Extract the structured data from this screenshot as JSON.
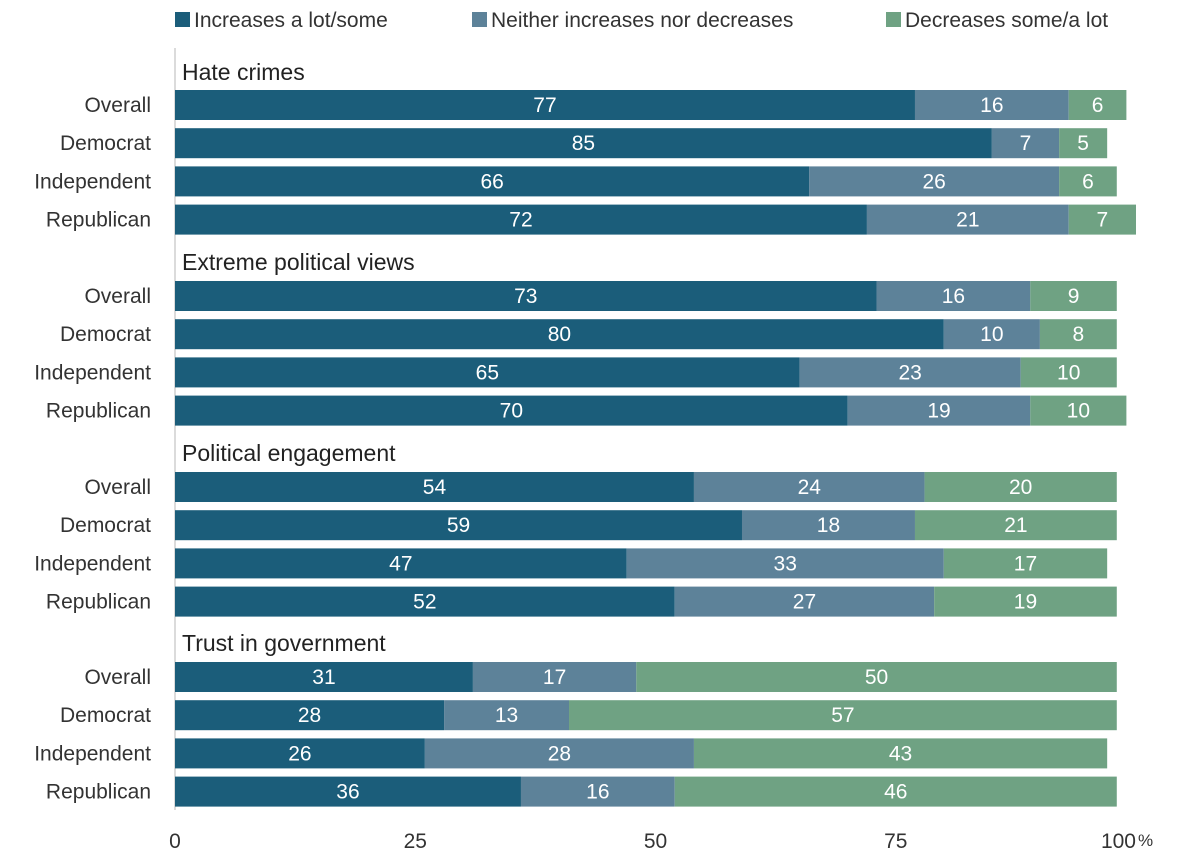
{
  "chart_data": {
    "type": "bar",
    "orientation": "horizontal",
    "stacked": true,
    "legend": {
      "position": "top",
      "entries": [
        {
          "name": "Increases a lot/some",
          "color": "#1b5d7a"
        },
        {
          "name": "Neither increases nor decreases",
          "color": "#5d8299"
        },
        {
          "name": "Decreases some/a lot",
          "color": "#6fa283"
        }
      ]
    },
    "x_axis": {
      "range": [
        0,
        100
      ],
      "ticks": [
        "0",
        "25",
        "50",
        "75",
        "100"
      ],
      "unit": "%"
    },
    "grid": false,
    "label_color": "#ffffff",
    "groups": [
      {
        "title": "Hate crimes",
        "rows": [
          {
            "label": "Overall",
            "values": [
              77,
              16,
              6
            ]
          },
          {
            "label": "Democrat",
            "values": [
              85,
              7,
              5
            ]
          },
          {
            "label": "Independent",
            "values": [
              66,
              26,
              6
            ]
          },
          {
            "label": "Republican",
            "values": [
              72,
              21,
              7
            ]
          }
        ]
      },
      {
        "title": "Extreme political views",
        "rows": [
          {
            "label": "Overall",
            "values": [
              73,
              16,
              9
            ]
          },
          {
            "label": "Democrat",
            "values": [
              80,
              10,
              8
            ]
          },
          {
            "label": "Independent",
            "values": [
              65,
              23,
              10
            ]
          },
          {
            "label": "Republican",
            "values": [
              70,
              19,
              10
            ]
          }
        ]
      },
      {
        "title": "Political engagement",
        "rows": [
          {
            "label": "Overall",
            "values": [
              54,
              24,
              20
            ]
          },
          {
            "label": "Democrat",
            "values": [
              59,
              18,
              21
            ]
          },
          {
            "label": "Independent",
            "values": [
              47,
              33,
              17
            ]
          },
          {
            "label": "Republican",
            "values": [
              52,
              27,
              19
            ]
          }
        ]
      },
      {
        "title": "Trust in government",
        "rows": [
          {
            "label": "Overall",
            "values": [
              31,
              17,
              50
            ]
          },
          {
            "label": "Democrat",
            "values": [
              28,
              13,
              57
            ]
          },
          {
            "label": "Independent",
            "values": [
              26,
              28,
              43
            ]
          },
          {
            "label": "Republican",
            "values": [
              36,
              16,
              46
            ]
          }
        ]
      }
    ]
  }
}
